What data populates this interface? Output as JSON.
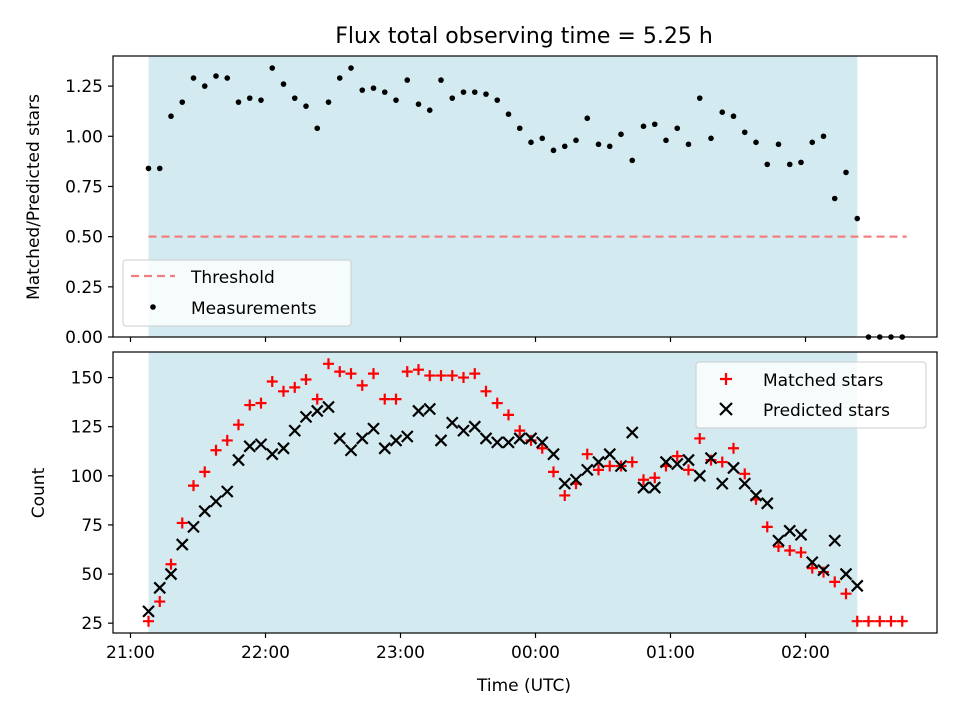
{
  "chart_data": [
    {
      "type": "scatter",
      "title": "Flux total observing time = 5.25 h",
      "xlabel": "",
      "ylabel": "Matched/Predicted stars",
      "ylim": [
        0.0,
        1.4
      ],
      "yticks": [
        "0.00",
        "0.25",
        "0.50",
        "0.75",
        "1.00",
        "1.25"
      ],
      "legend_position": "lower-left",
      "shaded_span": {
        "start": "21:08",
        "end": "02:23",
        "color": "#d3eaf0"
      },
      "threshold": {
        "name": "Threshold",
        "value": 0.5,
        "x_start": "21:08",
        "x_end": "02:45",
        "color": "#f08080",
        "style": "dashed"
      },
      "series": [
        {
          "name": "Measurements",
          "marker": "dot",
          "color": "#000000",
          "points": [
            [
              "21:08",
              0.84
            ],
            [
              "21:13",
              0.84
            ],
            [
              "21:18",
              1.1
            ],
            [
              "21:23",
              1.17
            ],
            [
              "21:28",
              1.29
            ],
            [
              "21:33",
              1.25
            ],
            [
              "21:38",
              1.3
            ],
            [
              "21:43",
              1.29
            ],
            [
              "21:48",
              1.17
            ],
            [
              "21:53",
              1.19
            ],
            [
              "21:58",
              1.18
            ],
            [
              "22:03",
              1.34
            ],
            [
              "22:08",
              1.26
            ],
            [
              "22:13",
              1.19
            ],
            [
              "22:18",
              1.15
            ],
            [
              "22:23",
              1.04
            ],
            [
              "22:28",
              1.17
            ],
            [
              "22:33",
              1.29
            ],
            [
              "22:38",
              1.34
            ],
            [
              "22:43",
              1.23
            ],
            [
              "22:48",
              1.24
            ],
            [
              "22:53",
              1.22
            ],
            [
              "22:58",
              1.18
            ],
            [
              "23:03",
              1.28
            ],
            [
              "23:08",
              1.16
            ],
            [
              "23:13",
              1.13
            ],
            [
              "23:18",
              1.28
            ],
            [
              "23:23",
              1.19
            ],
            [
              "23:28",
              1.22
            ],
            [
              "23:33",
              1.22
            ],
            [
              "23:38",
              1.21
            ],
            [
              "23:43",
              1.18
            ],
            [
              "23:48",
              1.11
            ],
            [
              "23:53",
              1.04
            ],
            [
              "23:58",
              0.97
            ],
            [
              "00:03",
              0.99
            ],
            [
              "00:08",
              0.93
            ],
            [
              "00:13",
              0.95
            ],
            [
              "00:18",
              0.98
            ],
            [
              "00:23",
              1.09
            ],
            [
              "00:28",
              0.96
            ],
            [
              "00:33",
              0.95
            ],
            [
              "00:38",
              1.01
            ],
            [
              "00:43",
              0.88
            ],
            [
              "00:48",
              1.05
            ],
            [
              "00:53",
              1.06
            ],
            [
              "00:58",
              0.98
            ],
            [
              "01:03",
              1.04
            ],
            [
              "01:08",
              0.96
            ],
            [
              "01:13",
              1.19
            ],
            [
              "01:18",
              0.99
            ],
            [
              "01:23",
              1.12
            ],
            [
              "01:28",
              1.1
            ],
            [
              "01:33",
              1.02
            ],
            [
              "01:38",
              0.97
            ],
            [
              "01:43",
              0.86
            ],
            [
              "01:48",
              0.96
            ],
            [
              "01:53",
              0.86
            ],
            [
              "01:58",
              0.87
            ],
            [
              "02:03",
              0.97
            ],
            [
              "02:08",
              1.0
            ],
            [
              "02:13",
              0.69
            ],
            [
              "02:18",
              0.82
            ],
            [
              "02:23",
              0.59
            ],
            [
              "02:28",
              0.0
            ],
            [
              "02:33",
              0.0
            ],
            [
              "02:38",
              0.0
            ],
            [
              "02:43",
              0.0
            ]
          ]
        }
      ]
    },
    {
      "type": "scatter",
      "title": "",
      "xlabel": "Time (UTC)",
      "ylabel": "Count",
      "ylim": [
        20,
        163
      ],
      "yticks": [
        "25",
        "50",
        "75",
        "100",
        "125",
        "150"
      ],
      "xticks": [
        "21:00",
        "22:00",
        "23:00",
        "00:00",
        "01:00",
        "02:00"
      ],
      "legend_position": "upper-right",
      "shaded_span": {
        "start": "21:08",
        "end": "02:23",
        "color": "#d3eaf0"
      },
      "series": [
        {
          "name": "Matched stars",
          "marker": "plus",
          "color": "#ff0000",
          "points": [
            [
              "21:08",
              26
            ],
            [
              "21:13",
              36
            ],
            [
              "21:18",
              55
            ],
            [
              "21:23",
              76
            ],
            [
              "21:28",
              95
            ],
            [
              "21:33",
              102
            ],
            [
              "21:38",
              113
            ],
            [
              "21:43",
              118
            ],
            [
              "21:48",
              126
            ],
            [
              "21:53",
              136
            ],
            [
              "21:58",
              137
            ],
            [
              "22:03",
              148
            ],
            [
              "22:08",
              143
            ],
            [
              "22:13",
              145
            ],
            [
              "22:18",
              149
            ],
            [
              "22:23",
              139
            ],
            [
              "22:28",
              157
            ],
            [
              "22:33",
              153
            ],
            [
              "22:38",
              152
            ],
            [
              "22:43",
              146
            ],
            [
              "22:48",
              152
            ],
            [
              "22:53",
              139
            ],
            [
              "22:58",
              139
            ],
            [
              "23:03",
              153
            ],
            [
              "23:08",
              154
            ],
            [
              "23:13",
              151
            ],
            [
              "23:18",
              151
            ],
            [
              "23:23",
              151
            ],
            [
              "23:28",
              150
            ],
            [
              "23:33",
              152
            ],
            [
              "23:38",
              143
            ],
            [
              "23:43",
              137
            ],
            [
              "23:48",
              131
            ],
            [
              "23:53",
              123
            ],
            [
              "23:58",
              118
            ],
            [
              "00:03",
              114
            ],
            [
              "00:08",
              102
            ],
            [
              "00:13",
              90
            ],
            [
              "00:18",
              96
            ],
            [
              "00:23",
              111
            ],
            [
              "00:28",
              103
            ],
            [
              "00:33",
              105
            ],
            [
              "00:38",
              105
            ],
            [
              "00:43",
              107
            ],
            [
              "00:48",
              98
            ],
            [
              "00:53",
              99
            ],
            [
              "00:58",
              105
            ],
            [
              "01:03",
              110
            ],
            [
              "01:08",
              103
            ],
            [
              "01:13",
              119
            ],
            [
              "01:18",
              108
            ],
            [
              "01:23",
              107
            ],
            [
              "01:28",
              114
            ],
            [
              "01:33",
              101
            ],
            [
              "01:38",
              88
            ],
            [
              "01:43",
              74
            ],
            [
              "01:48",
              64
            ],
            [
              "01:53",
              62
            ],
            [
              "01:58",
              61
            ],
            [
              "02:03",
              53
            ],
            [
              "02:08",
              51
            ],
            [
              "02:13",
              46
            ],
            [
              "02:18",
              40
            ],
            [
              "02:23",
              26
            ],
            [
              "02:28",
              26
            ],
            [
              "02:33",
              26
            ],
            [
              "02:38",
              26
            ],
            [
              "02:43",
              26
            ]
          ]
        },
        {
          "name": "Predicted stars",
          "marker": "x",
          "color": "#000000",
          "points": [
            [
              "21:08",
              31
            ],
            [
              "21:13",
              43
            ],
            [
              "21:18",
              50
            ],
            [
              "21:23",
              65
            ],
            [
              "21:28",
              74
            ],
            [
              "21:33",
              82
            ],
            [
              "21:38",
              87
            ],
            [
              "21:43",
              92
            ],
            [
              "21:48",
              108
            ],
            [
              "21:53",
              115
            ],
            [
              "21:58",
              116
            ],
            [
              "22:03",
              111
            ],
            [
              "22:08",
              114
            ],
            [
              "22:13",
              123
            ],
            [
              "22:18",
              130
            ],
            [
              "22:23",
              133
            ],
            [
              "22:28",
              135
            ],
            [
              "22:33",
              119
            ],
            [
              "22:38",
              113
            ],
            [
              "22:43",
              119
            ],
            [
              "22:48",
              124
            ],
            [
              "22:53",
              114
            ],
            [
              "22:58",
              118
            ],
            [
              "23:03",
              120
            ],
            [
              "23:08",
              133
            ],
            [
              "23:13",
              134
            ],
            [
              "23:18",
              118
            ],
            [
              "23:23",
              127
            ],
            [
              "23:28",
              123
            ],
            [
              "23:33",
              125
            ],
            [
              "23:38",
              119
            ],
            [
              "23:43",
              117
            ],
            [
              "23:48",
              117
            ],
            [
              "23:53",
              119
            ],
            [
              "23:58",
              119
            ],
            [
              "00:03",
              117
            ],
            [
              "00:08",
              111
            ],
            [
              "00:13",
              96
            ],
            [
              "00:18",
              98
            ],
            [
              "00:23",
              103
            ],
            [
              "00:28",
              107
            ],
            [
              "00:33",
              111
            ],
            [
              "00:38",
              105
            ],
            [
              "00:43",
              122
            ],
            [
              "00:48",
              94
            ],
            [
              "00:53",
              94
            ],
            [
              "00:58",
              107
            ],
            [
              "01:03",
              106
            ],
            [
              "01:08",
              108
            ],
            [
              "01:13",
              100
            ],
            [
              "01:18",
              109
            ],
            [
              "01:23",
              96
            ],
            [
              "01:28",
              104
            ],
            [
              "01:33",
              96
            ],
            [
              "01:38",
              90
            ],
            [
              "01:43",
              86
            ],
            [
              "01:48",
              67
            ],
            [
              "01:53",
              72
            ],
            [
              "01:58",
              70
            ],
            [
              "02:03",
              56
            ],
            [
              "02:08",
              52
            ],
            [
              "02:13",
              67
            ],
            [
              "02:18",
              50
            ],
            [
              "02:23",
              44
            ]
          ]
        }
      ]
    }
  ]
}
